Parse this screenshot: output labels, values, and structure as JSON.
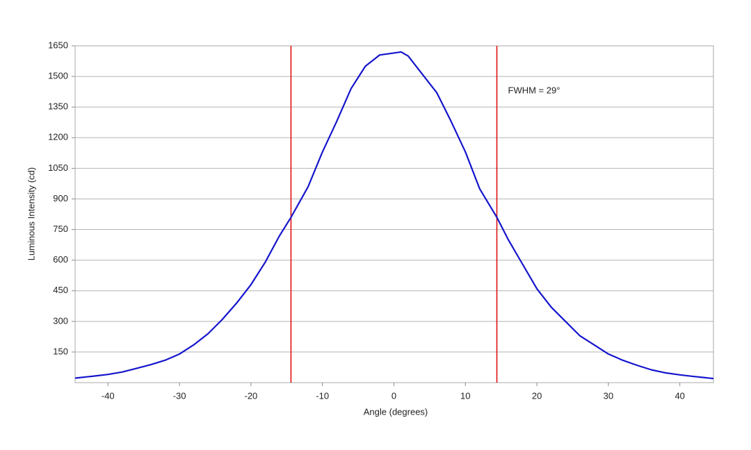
{
  "chart_data": {
    "type": "line",
    "x_label": "Angle (degrees)",
    "y_label": "Luminous Intensity (cd)",
    "annotation": "FWHM = 29°",
    "x": [
      -44.6,
      -42,
      -40,
      -38,
      -36,
      -34,
      -32,
      -30,
      -28,
      -26,
      -24,
      -22,
      -20,
      -18,
      -16,
      -14.4,
      -12,
      -10,
      -8,
      -6,
      -4,
      -2,
      0,
      1,
      2,
      4,
      6,
      8,
      10,
      12,
      14.4,
      16,
      18,
      20,
      22,
      24,
      26,
      28,
      30,
      32,
      34,
      36,
      38,
      40,
      42,
      44.7
    ],
    "series": [
      {
        "color": "#1414cc",
        "values": [
          22,
          32,
          40,
          52,
          70,
          88,
          110,
          140,
          185,
          240,
          310,
          390,
          480,
          590,
          720,
          810,
          960,
          1130,
          1280,
          1440,
          1550,
          1605,
          1615,
          1620,
          1600,
          1510,
          1420,
          1280,
          1130,
          950,
          810,
          700,
          580,
          460,
          370,
          300,
          230,
          185,
          140,
          110,
          85,
          63,
          48,
          38,
          30,
          20
        ]
      }
    ],
    "vlines": [
      {
        "value": -14.4,
        "color": "#e01010"
      },
      {
        "value": 14.4,
        "color": "#e01010"
      }
    ],
    "xlim": [
      -44.6,
      44.7
    ],
    "ylim": [
      0,
      1650
    ],
    "xticks": [
      -40,
      -30,
      -20,
      -10,
      0,
      10,
      20,
      30,
      40
    ],
    "yticks": [
      150,
      300,
      450,
      600,
      750,
      900,
      1050,
      1200,
      1350,
      1500,
      1650
    ],
    "grid": true
  }
}
